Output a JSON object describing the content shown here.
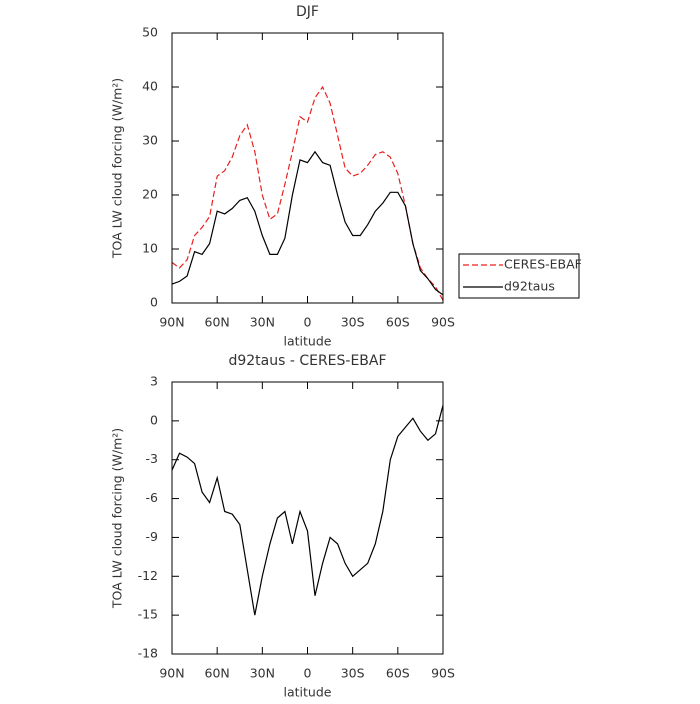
{
  "chart_data": [
    {
      "type": "line",
      "title": "DJF",
      "xlabel": "latitude",
      "ylabel": "TOA LW cloud forcing (W/m²)",
      "x": [
        90,
        85,
        80,
        75,
        70,
        65,
        60,
        55,
        50,
        45,
        40,
        35,
        30,
        25,
        20,
        15,
        10,
        5,
        0,
        -5,
        -10,
        -15,
        -20,
        -25,
        -30,
        -35,
        -40,
        -45,
        -50,
        -55,
        -60,
        -65,
        -70,
        -75,
        -80,
        -85,
        -90
      ],
      "series": [
        {
          "name": "CERES-EBAF",
          "color": "#e8211e",
          "linestyle": "dashed",
          "values": [
            7.5,
            6.5,
            8,
            12.5,
            14,
            16,
            23.5,
            24.5,
            27,
            31,
            33,
            28,
            20,
            15.5,
            16.5,
            22,
            28,
            34.5,
            33.5,
            38,
            40,
            37,
            31,
            25,
            23.5,
            24,
            25.5,
            27.5,
            28,
            27,
            24,
            18,
            11,
            6.5,
            4.5,
            3,
            0.5
          ]
        },
        {
          "name": "d92taus",
          "color": "#000000",
          "linestyle": "solid",
          "values": [
            3.5,
            4,
            5,
            9.5,
            9,
            11,
            17,
            16.5,
            17.5,
            19,
            19.5,
            17,
            12.5,
            9,
            9,
            12,
            20,
            26.5,
            26,
            28,
            26,
            25.5,
            20,
            15,
            12.5,
            12.5,
            14.5,
            17,
            18.5,
            20.5,
            20.5,
            18,
            11,
            6,
            4.5,
            2.5,
            1.5
          ]
        }
      ],
      "xlim": [
        90,
        -90
      ],
      "xticks": [
        {
          "value": 90,
          "label": "90N"
        },
        {
          "value": 60,
          "label": "60N"
        },
        {
          "value": 30,
          "label": "30N"
        },
        0,
        {
          "value": -30,
          "label": "30S"
        },
        {
          "value": -60,
          "label": "60S"
        },
        {
          "value": -90,
          "label": "90S"
        }
      ],
      "ylim": [
        0,
        50
      ],
      "yticks": [
        0,
        10,
        20,
        30,
        40,
        50
      ],
      "legend": "right"
    },
    {
      "type": "line",
      "title": "d92taus - CERES-EBAF",
      "xlabel": "latitude",
      "ylabel": "TOA LW cloud forcing (W/m²)",
      "x": [
        90,
        85,
        80,
        75,
        70,
        65,
        60,
        55,
        50,
        45,
        40,
        35,
        30,
        25,
        20,
        15,
        10,
        5,
        0,
        -5,
        -10,
        -15,
        -20,
        -25,
        -30,
        -35,
        -40,
        -45,
        -50,
        -55,
        -60,
        -65,
        -70,
        -75,
        -80,
        -85,
        -90
      ],
      "color": "#000000",
      "values": [
        -3.8,
        -2.5,
        -2.8,
        -3.3,
        -5.5,
        -6.3,
        -4.4,
        -7,
        -7.2,
        -8,
        -11.5,
        -15,
        -12,
        -9.5,
        -7.5,
        -7,
        -9.5,
        -7,
        -8.5,
        -13.5,
        -11,
        -9,
        -9.5,
        -11,
        -12,
        -11.5,
        -11,
        -9.5,
        -7,
        -3,
        -1.2,
        -0.5,
        0.2,
        -0.8,
        -1.5,
        -1,
        1.2
      ],
      "xlim": [
        90,
        -90
      ],
      "xticks": [
        {
          "value": 90,
          "label": "90N"
        },
        {
          "value": 60,
          "label": "60N"
        },
        {
          "value": 30,
          "label": "30N"
        },
        0,
        {
          "value": -30,
          "label": "30S"
        },
        {
          "value": -60,
          "label": "60S"
        },
        {
          "value": -90,
          "label": "90S"
        }
      ],
      "ylim": [
        -18,
        3
      ],
      "yticks": [
        -18,
        -15,
        -12,
        -9,
        -6,
        -3,
        0,
        3
      ]
    }
  ]
}
